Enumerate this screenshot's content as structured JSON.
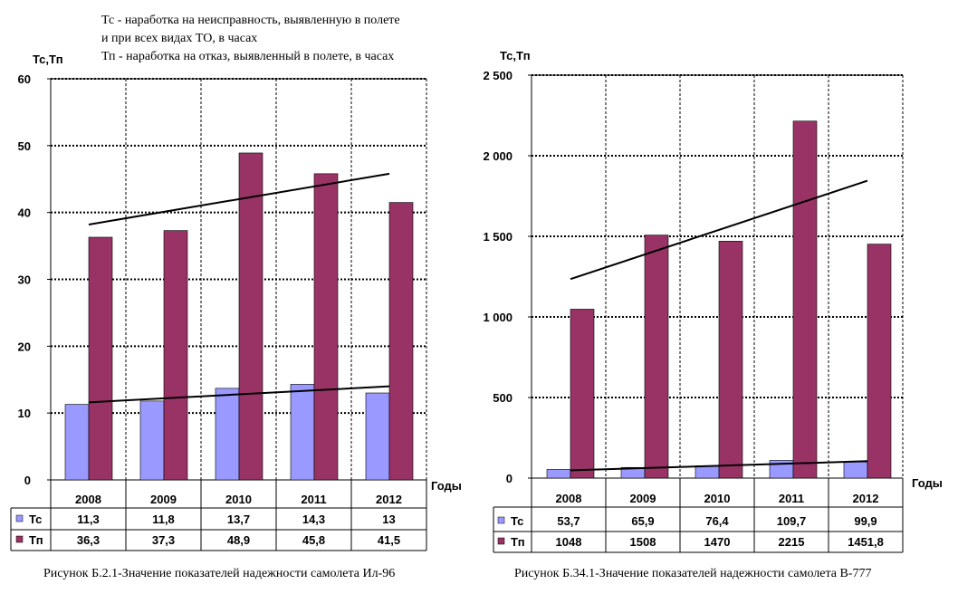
{
  "page": {
    "legend_note_lines": [
      "Тс - наработка на неисправность, выявленную в полете",
      "и при всех видах ТО, в часах",
      "Тп - наработка на отказ, выявленный в полете, в часах"
    ]
  },
  "chart_data": [
    {
      "type": "bar",
      "title": "",
      "ylabel": "Тс,Тп",
      "xlabel": "Годы",
      "categories": [
        "2008",
        "2009",
        "2010",
        "2011",
        "2012"
      ],
      "series": [
        {
          "name": "Тс",
          "values": [
            11.3,
            11.8,
            13.7,
            14.3,
            13
          ],
          "labels": [
            "11,3",
            "11,8",
            "13,7",
            "14,3",
            "13"
          ],
          "color": "#9999ff"
        },
        {
          "name": "Тп",
          "values": [
            36.3,
            37.3,
            48.9,
            45.8,
            41.5
          ],
          "labels": [
            "36,3",
            "37,3",
            "48,9",
            "45,8",
            "41,5"
          ],
          "color": "#993366"
        }
      ],
      "ylim": [
        0,
        60
      ],
      "yticks": [
        0,
        10,
        20,
        30,
        40,
        50,
        60
      ],
      "ytick_labels": [
        "0",
        "10",
        "20",
        "30",
        "40",
        "50",
        "60"
      ],
      "trendlines": [
        {
          "series": "Тс",
          "from": 11.6,
          "to": 14.0
        },
        {
          "series": "Тп",
          "from": 38.2,
          "to": 45.8
        }
      ],
      "grid": true,
      "data_table": true,
      "caption": "Рисунок Б.2.1-Значение показателей надежности самолета Ил-96"
    },
    {
      "type": "bar",
      "title": "",
      "ylabel": "Тс,Тп",
      "xlabel": "Годы",
      "categories": [
        "2008",
        "2009",
        "2010",
        "2011",
        "2012"
      ],
      "series": [
        {
          "name": "Тс",
          "values": [
            53.7,
            65.9,
            76.4,
            109.7,
            99.9
          ],
          "labels": [
            "53,7",
            "65,9",
            "76,4",
            "109,7",
            "99,9"
          ],
          "color": "#9999ff"
        },
        {
          "name": "Тп",
          "values": [
            1048,
            1508,
            1470,
            2215,
            1451.8
          ],
          "labels": [
            "1048",
            "1508",
            "1470",
            "2215",
            "1451,8"
          ],
          "color": "#993366"
        }
      ],
      "ylim": [
        0,
        2500
      ],
      "yticks": [
        0,
        500,
        1000,
        1500,
        2000,
        2500
      ],
      "ytick_labels": [
        "0",
        "500",
        "1 000",
        "1 500",
        "2 000",
        "2 500"
      ],
      "trendlines": [
        {
          "series": "Тс",
          "from": 48,
          "to": 105
        },
        {
          "series": "Тп",
          "from": 1235,
          "to": 1845
        }
      ],
      "grid": true,
      "data_table": true,
      "caption": "Рисунок Б.34.1-Значение показателей надежности самолета В-777"
    }
  ]
}
